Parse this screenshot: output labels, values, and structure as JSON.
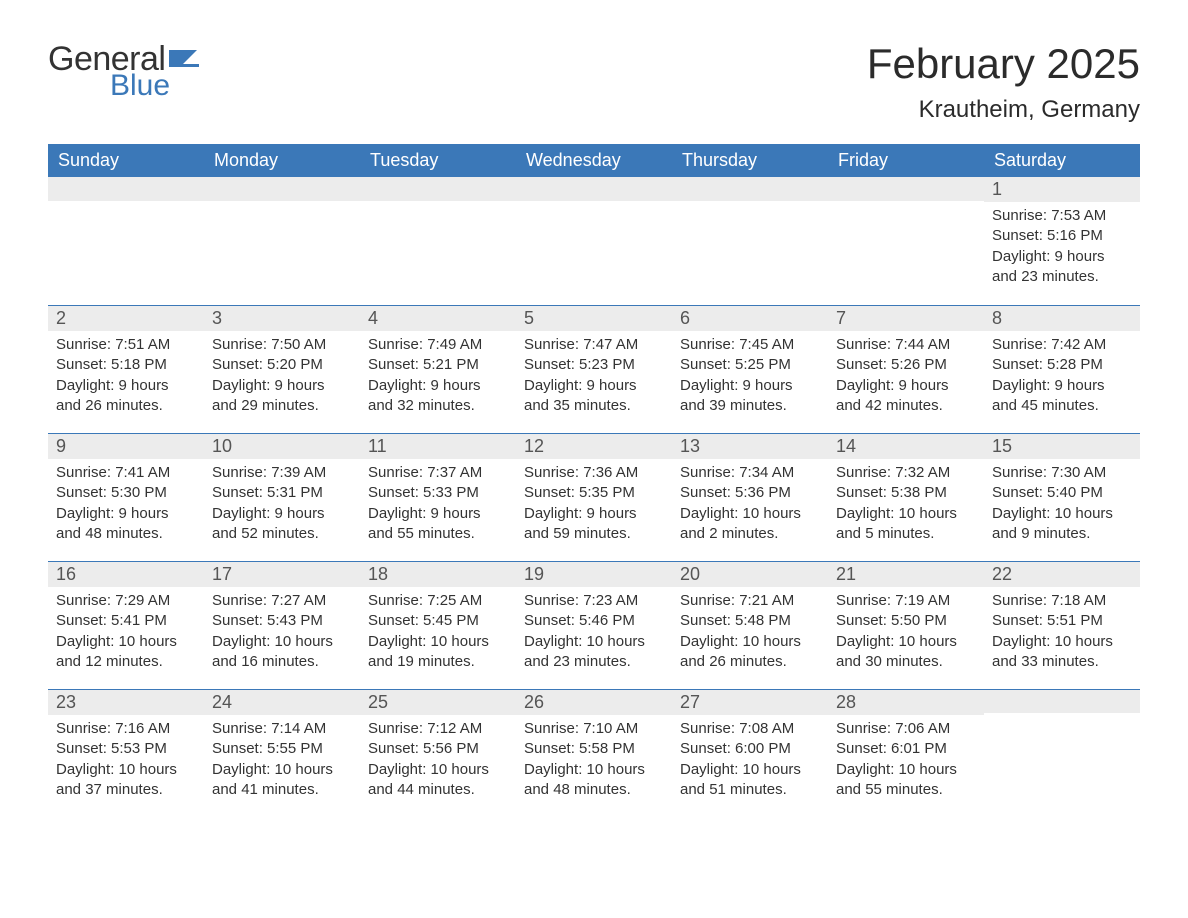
{
  "brand": {
    "word1": "General",
    "word2": "Blue",
    "text_color": "#333333",
    "accent_color": "#3b78b8"
  },
  "title": "February 2025",
  "location": "Krautheim, Germany",
  "colors": {
    "header_bg": "#3b78b8",
    "header_text": "#ffffff",
    "daynum_bg": "#ececec",
    "row_divider": "#3b78b8",
    "body_text": "#333333",
    "page_bg": "#ffffff"
  },
  "typography": {
    "title_fontsize": 42,
    "location_fontsize": 24,
    "header_fontsize": 18,
    "daynum_fontsize": 18,
    "body_fontsize": 15
  },
  "layout": {
    "columns": 7,
    "rows": 5,
    "start_day_index": 6
  },
  "weekdays": [
    "Sunday",
    "Monday",
    "Tuesday",
    "Wednesday",
    "Thursday",
    "Friday",
    "Saturday"
  ],
  "labels": {
    "sunrise": "Sunrise:",
    "sunset": "Sunset:",
    "daylight": "Daylight:"
  },
  "days": [
    {
      "n": 1,
      "sunrise": "7:53 AM",
      "sunset": "5:16 PM",
      "daylight": "9 hours and 23 minutes."
    },
    {
      "n": 2,
      "sunrise": "7:51 AM",
      "sunset": "5:18 PM",
      "daylight": "9 hours and 26 minutes."
    },
    {
      "n": 3,
      "sunrise": "7:50 AM",
      "sunset": "5:20 PM",
      "daylight": "9 hours and 29 minutes."
    },
    {
      "n": 4,
      "sunrise": "7:49 AM",
      "sunset": "5:21 PM",
      "daylight": "9 hours and 32 minutes."
    },
    {
      "n": 5,
      "sunrise": "7:47 AM",
      "sunset": "5:23 PM",
      "daylight": "9 hours and 35 minutes."
    },
    {
      "n": 6,
      "sunrise": "7:45 AM",
      "sunset": "5:25 PM",
      "daylight": "9 hours and 39 minutes."
    },
    {
      "n": 7,
      "sunrise": "7:44 AM",
      "sunset": "5:26 PM",
      "daylight": "9 hours and 42 minutes."
    },
    {
      "n": 8,
      "sunrise": "7:42 AM",
      "sunset": "5:28 PM",
      "daylight": "9 hours and 45 minutes."
    },
    {
      "n": 9,
      "sunrise": "7:41 AM",
      "sunset": "5:30 PM",
      "daylight": "9 hours and 48 minutes."
    },
    {
      "n": 10,
      "sunrise": "7:39 AM",
      "sunset": "5:31 PM",
      "daylight": "9 hours and 52 minutes."
    },
    {
      "n": 11,
      "sunrise": "7:37 AM",
      "sunset": "5:33 PM",
      "daylight": "9 hours and 55 minutes."
    },
    {
      "n": 12,
      "sunrise": "7:36 AM",
      "sunset": "5:35 PM",
      "daylight": "9 hours and 59 minutes."
    },
    {
      "n": 13,
      "sunrise": "7:34 AM",
      "sunset": "5:36 PM",
      "daylight": "10 hours and 2 minutes."
    },
    {
      "n": 14,
      "sunrise": "7:32 AM",
      "sunset": "5:38 PM",
      "daylight": "10 hours and 5 minutes."
    },
    {
      "n": 15,
      "sunrise": "7:30 AM",
      "sunset": "5:40 PM",
      "daylight": "10 hours and 9 minutes."
    },
    {
      "n": 16,
      "sunrise": "7:29 AM",
      "sunset": "5:41 PM",
      "daylight": "10 hours and 12 minutes."
    },
    {
      "n": 17,
      "sunrise": "7:27 AM",
      "sunset": "5:43 PM",
      "daylight": "10 hours and 16 minutes."
    },
    {
      "n": 18,
      "sunrise": "7:25 AM",
      "sunset": "5:45 PM",
      "daylight": "10 hours and 19 minutes."
    },
    {
      "n": 19,
      "sunrise": "7:23 AM",
      "sunset": "5:46 PM",
      "daylight": "10 hours and 23 minutes."
    },
    {
      "n": 20,
      "sunrise": "7:21 AM",
      "sunset": "5:48 PM",
      "daylight": "10 hours and 26 minutes."
    },
    {
      "n": 21,
      "sunrise": "7:19 AM",
      "sunset": "5:50 PM",
      "daylight": "10 hours and 30 minutes."
    },
    {
      "n": 22,
      "sunrise": "7:18 AM",
      "sunset": "5:51 PM",
      "daylight": "10 hours and 33 minutes."
    },
    {
      "n": 23,
      "sunrise": "7:16 AM",
      "sunset": "5:53 PM",
      "daylight": "10 hours and 37 minutes."
    },
    {
      "n": 24,
      "sunrise": "7:14 AM",
      "sunset": "5:55 PM",
      "daylight": "10 hours and 41 minutes."
    },
    {
      "n": 25,
      "sunrise": "7:12 AM",
      "sunset": "5:56 PM",
      "daylight": "10 hours and 44 minutes."
    },
    {
      "n": 26,
      "sunrise": "7:10 AM",
      "sunset": "5:58 PM",
      "daylight": "10 hours and 48 minutes."
    },
    {
      "n": 27,
      "sunrise": "7:08 AM",
      "sunset": "6:00 PM",
      "daylight": "10 hours and 51 minutes."
    },
    {
      "n": 28,
      "sunrise": "7:06 AM",
      "sunset": "6:01 PM",
      "daylight": "10 hours and 55 minutes."
    }
  ]
}
